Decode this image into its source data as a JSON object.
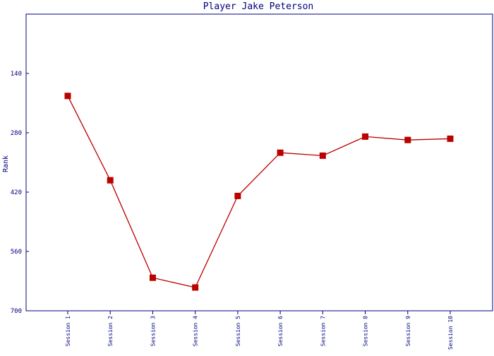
{
  "chart_data": {
    "type": "line",
    "title": "Player Jake Peterson",
    "xlabel": "",
    "ylabel": "Rank",
    "y_inverted": true,
    "ylim": [
      0,
      700
    ],
    "yticks": [
      140,
      280,
      420,
      560,
      700
    ],
    "categories": [
      "Session 1",
      "Session 2",
      "Session 3",
      "Session 4",
      "Session 5",
      "Session 6",
      "Session 7",
      "Session 8",
      "Session 9",
      "Session 10"
    ],
    "series": [
      {
        "values": [
          193,
          392,
          622,
          645,
          429,
          327,
          334,
          289,
          297,
          294
        ],
        "color": "#bb0000"
      }
    ],
    "grid": false,
    "legend": "none",
    "colors": {
      "axis": "#000080",
      "text": "#000080",
      "series": "#bb0000"
    }
  }
}
